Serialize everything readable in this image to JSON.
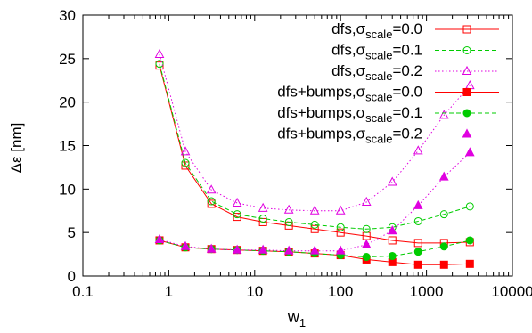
{
  "chart_data": {
    "type": "line",
    "xlabel": "w",
    "xlabel_sub": "1",
    "ylabel": "Δε [nm]",
    "xscale": "log",
    "xlim": [
      0.1,
      10000
    ],
    "ylim": [
      0,
      30
    ],
    "x_ticks": [
      0.1,
      1,
      10,
      100,
      1000,
      10000
    ],
    "x_tick_labels": [
      "0.1",
      "1",
      "10",
      "100",
      "1000",
      "10000"
    ],
    "y_ticks": [
      0,
      5,
      10,
      15,
      20,
      25,
      30
    ],
    "y_tick_labels": [
      "0",
      "5",
      "10",
      "15",
      "20",
      "25",
      "30"
    ],
    "legend_position": "top-right",
    "x": [
      0.78,
      1.56,
      3.13,
      6.25,
      12.5,
      25,
      50,
      100,
      200,
      400,
      800,
      1600,
      3200
    ],
    "series": [
      {
        "label_prefix": "dfs,σ",
        "label_sub": "scale",
        "label_suffix": "=0.0",
        "color": "#ff0000",
        "dash": "solid",
        "marker": "square-open",
        "values": [
          24.2,
          12.7,
          8.3,
          6.8,
          6.2,
          5.8,
          5.4,
          5.0,
          4.6,
          4.1,
          3.8,
          3.8,
          3.9
        ]
      },
      {
        "label_prefix": "dfs,σ",
        "label_sub": "scale",
        "label_suffix": "=0.1",
        "color": "#00cc00",
        "dash": "dashed",
        "marker": "circle-open",
        "values": [
          24.4,
          13.0,
          8.6,
          7.1,
          6.6,
          6.2,
          5.9,
          5.6,
          5.4,
          5.6,
          6.3,
          7.1,
          8.0
        ]
      },
      {
        "label_prefix": "dfs,σ",
        "label_sub": "scale",
        "label_suffix": "=0.2",
        "color": "#e000e0",
        "dash": "dotted",
        "marker": "triangle-open",
        "values": [
          25.5,
          14.3,
          9.9,
          8.4,
          7.8,
          7.6,
          7.5,
          7.5,
          8.5,
          10.8,
          14.4,
          18.5,
          21.9
        ]
      },
      {
        "label_prefix": "dfs+bumps,σ",
        "label_sub": "scale",
        "label_suffix": "=0.0",
        "color": "#ff0000",
        "dash": "solid",
        "marker": "square-filled",
        "values": [
          4.1,
          3.3,
          3.1,
          3.0,
          2.9,
          2.8,
          2.6,
          2.4,
          1.9,
          1.6,
          1.3,
          1.3,
          1.4
        ]
      },
      {
        "label_prefix": "dfs+bumps,σ",
        "label_sub": "scale",
        "label_suffix": "=0.1",
        "color": "#00cc00",
        "dash": "dashed",
        "marker": "circle-filled",
        "values": [
          4.1,
          3.3,
          3.1,
          3.0,
          2.9,
          2.8,
          2.6,
          2.4,
          2.2,
          2.3,
          2.8,
          3.4,
          4.1
        ]
      },
      {
        "label_prefix": "dfs+bumps,σ",
        "label_sub": "scale",
        "label_suffix": "=0.2",
        "color": "#e000e0",
        "dash": "dotted",
        "marker": "triangle-filled",
        "values": [
          4.2,
          3.4,
          3.1,
          3.0,
          3.0,
          2.9,
          2.9,
          2.9,
          3.6,
          5.2,
          8.1,
          11.4,
          14.2
        ]
      }
    ]
  }
}
